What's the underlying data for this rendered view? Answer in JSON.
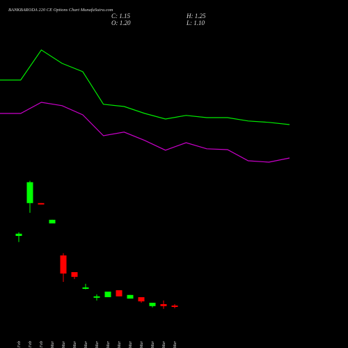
{
  "chart_data": {
    "type": "candlestick",
    "title": "BANKBARODA 220  CE Options  Chart MunafaSutra.com",
    "info": [
      "C: 1.15",
      "H: 1.25",
      "O: 1.20",
      "L: 1.10"
    ],
    "categories": [
      "25 Feb",
      "26 Feb",
      "27 Feb",
      "02 Mar",
      "04 Mar",
      "05 Mar",
      "06 Mar",
      "09 Mar",
      "10 Mar",
      "11 Mar",
      "12 Mar",
      "13 Mar",
      "16 Mar",
      "17 Mar",
      "18 Mar"
    ],
    "open": [
      3.7,
      4.88,
      4.88,
      4.15,
      3.0,
      2.4,
      1.8,
      1.48,
      1.5,
      1.75,
      1.45,
      1.5,
      1.18,
      1.25,
      1.2
    ],
    "high": [
      3.83,
      5.68,
      4.88,
      4.28,
      3.08,
      2.4,
      1.98,
      1.6,
      1.7,
      1.75,
      1.58,
      1.5,
      1.3,
      1.38,
      1.25
    ],
    "low": [
      3.48,
      4.53,
      4.83,
      4.15,
      2.05,
      2.15,
      1.78,
      1.38,
      1.5,
      1.53,
      1.45,
      1.3,
      1.13,
      1.08,
      1.1
    ],
    "close": [
      3.78,
      5.63,
      4.83,
      4.28,
      2.35,
      2.23,
      1.85,
      1.53,
      1.7,
      1.53,
      1.58,
      1.35,
      1.3,
      1.18,
      1.15
    ],
    "up_color": "#00ff00",
    "down_color": "#ff0000",
    "lines": [
      {
        "color": "#00ee00",
        "values": [
          9.3,
          9.3,
          10.38,
          9.9,
          9.6,
          8.43,
          8.35,
          8.1,
          7.9,
          8.03,
          7.95,
          7.95,
          7.83,
          7.78,
          7.7
        ]
      },
      {
        "color": "#cc00cc",
        "values": [
          8.1,
          8.1,
          8.5,
          8.38,
          8.05,
          7.3,
          7.43,
          7.13,
          6.78,
          7.05,
          6.83,
          6.8,
          6.4,
          6.35,
          6.5
        ]
      }
    ],
    "ylim": [
      0,
      12
    ]
  }
}
